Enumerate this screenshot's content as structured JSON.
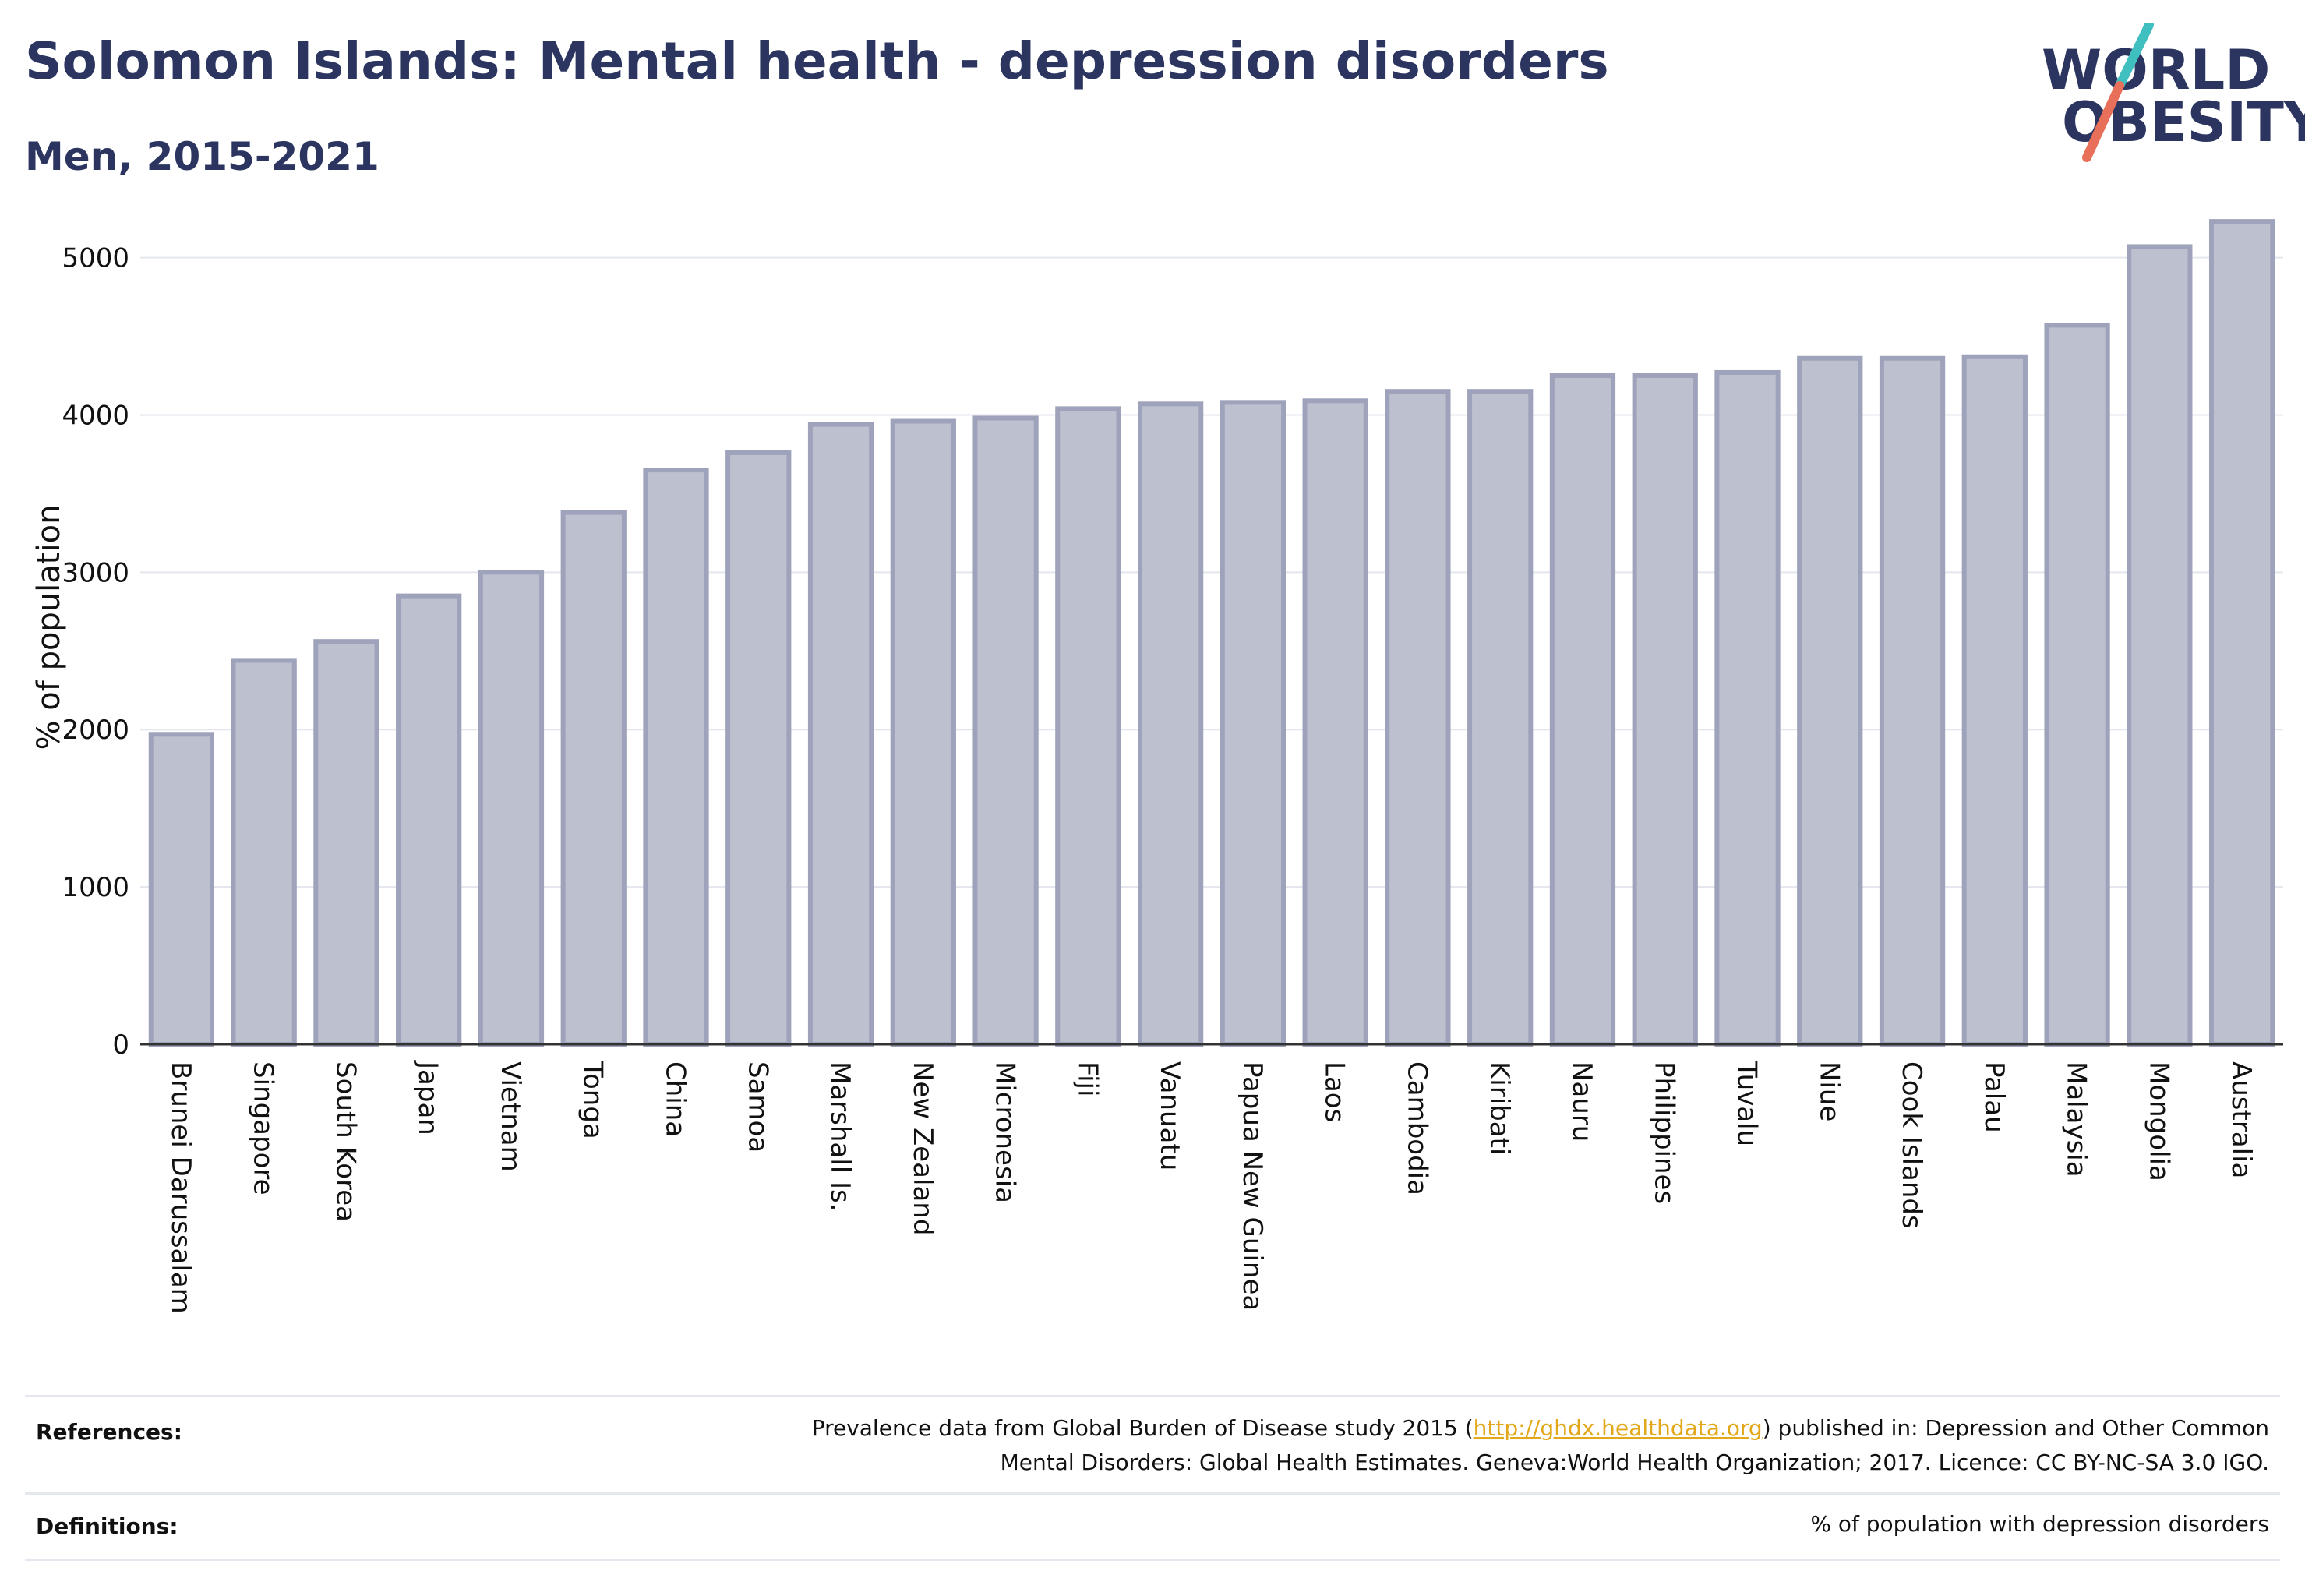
{
  "header": {
    "title": "Solomon Islands: Mental health - depression disorders",
    "subtitle": "Men, 2015-2021"
  },
  "logo": {
    "line1": "WORLD",
    "line2": "OBESITY",
    "brand_color": "#2b3560",
    "accent_teal": "#3fbfbf",
    "accent_coral": "#e8705a"
  },
  "chart_data": {
    "type": "bar",
    "title": "Solomon Islands: Mental health - depression disorders",
    "subtitle": "Men, 2015-2021",
    "ylabel": "% of population",
    "xlabel": "",
    "ylim": [
      0,
      5300
    ],
    "yticks": [
      0,
      1000,
      2000,
      3000,
      4000,
      5000
    ],
    "grid": true,
    "bar_color": "#bcc0cf",
    "bar_edge_color": "#9ea3bb",
    "categories": [
      "Brunei Darussalam",
      "Singapore",
      "South Korea",
      "Japan",
      "Vietnam",
      "Tonga",
      "China",
      "Samoa",
      "Marshall Is.",
      "New Zealand",
      "Micronesia",
      "Fiji",
      "Vanuatu",
      "Papua New Guinea",
      "Laos",
      "Cambodia",
      "Kiribati",
      "Nauru",
      "Philippines",
      "Tuvalu",
      "Niue",
      "Cook Islands",
      "Palau",
      "Malaysia",
      "Mongolia",
      "Australia"
    ],
    "values": [
      1970,
      2440,
      2560,
      2850,
      3000,
      3380,
      3650,
      3760,
      3940,
      3960,
      3980,
      4040,
      4070,
      4080,
      4090,
      4150,
      4150,
      4250,
      4250,
      4270,
      4360,
      4360,
      4370,
      4570,
      5070,
      5230
    ]
  },
  "footer": {
    "references_label": "References:",
    "references_pre": "Prevalence data from Global Burden of Disease study 2015 (",
    "references_link": "http://ghdx.healthdata.org",
    "references_post": ") published in: Depression and Other Common",
    "references_line2": "Mental Disorders: Global Health Estimates. Geneva:World Health Organization; 2017. Licence: CC BY-NC-SA 3.0 IGO.",
    "definitions_label": "Definitions:",
    "definitions_text": "% of population with depression disorders"
  }
}
